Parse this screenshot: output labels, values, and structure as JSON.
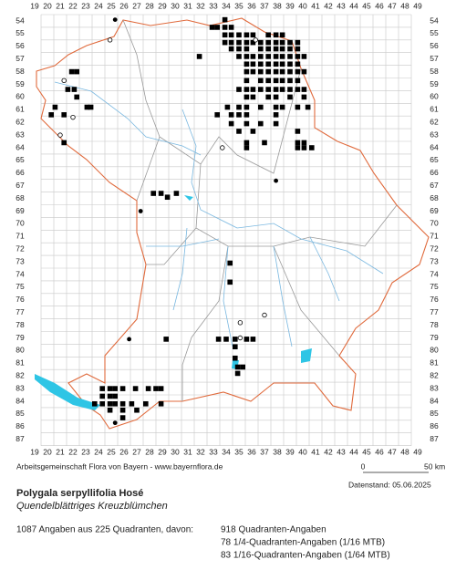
{
  "map": {
    "columns": [
      19,
      20,
      21,
      22,
      23,
      24,
      25,
      26,
      27,
      28,
      29,
      30,
      31,
      32,
      33,
      34,
      35,
      36,
      37,
      38,
      39,
      40,
      41,
      42,
      43,
      44,
      45,
      46,
      47,
      48,
      49
    ],
    "rows": [
      54,
      55,
      56,
      57,
      58,
      59,
      60,
      61,
      62,
      63,
      64,
      65,
      66,
      67,
      68,
      69,
      70,
      71,
      72,
      73,
      74,
      75,
      76,
      77,
      78,
      79,
      80,
      81,
      82,
      83,
      84,
      85,
      86,
      87
    ],
    "records": [
      {
        "row": 53.9,
        "cols": [
          33.9
        ],
        "symbol": "square"
      },
      {
        "row": 54.5,
        "cols": [
          32.9,
          33.3,
          33.9,
          34.4
        ],
        "symbol": "square"
      },
      {
        "row": 55.1,
        "cols": [
          33.9,
          34.4,
          35,
          35.6,
          36.1,
          37.3,
          37.9,
          38.4
        ],
        "symbol": "square"
      },
      {
        "row": 55.7,
        "cols": [
          33.9,
          34.4,
          35,
          35.6,
          36.1,
          36.7,
          37.3,
          37.9,
          38.4,
          39,
          39.6
        ],
        "symbol": "square"
      },
      {
        "row": 56.2,
        "cols": [
          34.4,
          35,
          35.6,
          36.7,
          37.3,
          37.9,
          38.4,
          39,
          39.6
        ],
        "symbol": "square"
      },
      {
        "row": 56.8,
        "cols": [
          31.9,
          35,
          35.6,
          36.1,
          36.7,
          37.3,
          37.9,
          38.4,
          39,
          39.6,
          40.1
        ],
        "symbol": "square"
      },
      {
        "row": 57.4,
        "cols": [
          35.6,
          36.1,
          36.7,
          37.3,
          37.9,
          38.4,
          39,
          39.6
        ],
        "symbol": "square"
      },
      {
        "row": 58.0,
        "cols": [
          21.9,
          22.3,
          35.6,
          36.1,
          36.7,
          37.3,
          37.9,
          38.4,
          39,
          39.6,
          40.1
        ],
        "symbol": "square"
      },
      {
        "row": 58.7,
        "cols": [
          35.6,
          36.7,
          37.3,
          37.9,
          38.4,
          39,
          39.6
        ],
        "symbol": "square"
      },
      {
        "row": 59.4,
        "cols": [
          21.6,
          22.1,
          35,
          35.6,
          36.1,
          36.7,
          37.3,
          37.9,
          38.4,
          39,
          39.6,
          40.1
        ],
        "symbol": "square"
      },
      {
        "row": 60.0,
        "cols": [
          22.3,
          35.6,
          36.1,
          37.3,
          37.9,
          39,
          40.1
        ],
        "symbol": "square"
      },
      {
        "row": 60.8,
        "cols": [
          20.6,
          23.1,
          23.4,
          34.1,
          35,
          35.6,
          36.7,
          37.9,
          38.4,
          39.6,
          40.4
        ],
        "symbol": "square"
      },
      {
        "row": 61.4,
        "cols": [
          20.3,
          21.3,
          33.3,
          34.4,
          35,
          35.6,
          37.9
        ],
        "symbol": "square"
      },
      {
        "row": 62.1,
        "cols": [
          34.4,
          35.6,
          36.7,
          37.9
        ],
        "symbol": "square"
      },
      {
        "row": 62.7,
        "cols": [
          35,
          36.1,
          39.6
        ],
        "symbol": "square"
      },
      {
        "row": 63.6,
        "cols": [
          21.3,
          35.6,
          37,
          39.6,
          40.1
        ],
        "symbol": "square"
      },
      {
        "row": 64.0,
        "cols": [
          35.6,
          39.6,
          40.1,
          40.7
        ],
        "symbol": "square"
      },
      {
        "row": 67.6,
        "cols": [
          28.3,
          28.9,
          30.1
        ],
        "symbol": "square"
      },
      {
        "row": 67.9,
        "cols": [
          29.4
        ],
        "symbol": "square"
      },
      {
        "row": 73.1,
        "cols": [
          34.3
        ],
        "symbol": "square"
      },
      {
        "row": 74.6,
        "cols": [
          34.3
        ],
        "symbol": "square"
      },
      {
        "row": 79.1,
        "cols": [
          29.3,
          33.4,
          34,
          34.7,
          35.6,
          36.1
        ],
        "symbol": "square"
      },
      {
        "row": 79.7,
        "cols": [
          34.7
        ],
        "symbol": "square"
      },
      {
        "row": 80.6,
        "cols": [
          34.7
        ],
        "symbol": "square"
      },
      {
        "row": 81.3,
        "cols": [
          34.9,
          35.3
        ],
        "symbol": "square"
      },
      {
        "row": 81.8,
        "cols": [
          34.9
        ],
        "symbol": "square"
      },
      {
        "row": 83.0,
        "cols": [
          24.3,
          24.9,
          25.3,
          25.9,
          26.9,
          27.9,
          28.5,
          28.9
        ],
        "symbol": "square"
      },
      {
        "row": 83.6,
        "cols": [
          24.3,
          24.9,
          25.3
        ],
        "symbol": "square"
      },
      {
        "row": 84.2,
        "cols": [
          23.7,
          24.3,
          24.9,
          25.3,
          25.9,
          26.6,
          27.7,
          28.9
        ],
        "symbol": "square"
      },
      {
        "row": 84.7,
        "cols": [
          24.9,
          25.9,
          27
        ],
        "symbol": "square"
      },
      {
        "row": 85.3,
        "cols": [
          25.9
        ],
        "symbol": "square"
      },
      {
        "row": 53.9,
        "cols": [
          25.3
        ],
        "symbol": "dot"
      },
      {
        "row": 66.6,
        "cols": [
          37.9
        ],
        "symbol": "dot"
      },
      {
        "row": 69.0,
        "cols": [
          27.3
        ],
        "symbol": "dot"
      },
      {
        "row": 79.1,
        "cols": [
          26.4
        ],
        "symbol": "dot"
      },
      {
        "row": 85.7,
        "cols": [
          25.3
        ],
        "symbol": "dot"
      },
      {
        "row": 55.5,
        "cols": [
          24.9,
          36.3
        ],
        "symbol": "circle"
      },
      {
        "row": 58.7,
        "cols": [
          21.3
        ],
        "symbol": "circle"
      },
      {
        "row": 61.6,
        "cols": [
          22
        ],
        "symbol": "circle"
      },
      {
        "row": 63.0,
        "cols": [
          21
        ],
        "symbol": "circle"
      },
      {
        "row": 64.0,
        "cols": [
          33.7
        ],
        "symbol": "circle"
      },
      {
        "row": 77.2,
        "cols": [
          37
        ],
        "symbol": "circle"
      },
      {
        "row": 77.8,
        "cols": [
          35.1
        ],
        "symbol": "circle"
      },
      {
        "row": 79.0,
        "cols": [
          35.1
        ],
        "symbol": "circle"
      }
    ]
  },
  "footer": {
    "credit": "Arbeitsgemeinschaft Flora von Bayern - www.bayernflora.de",
    "scale_start": "0",
    "scale_end": "50 km",
    "date": "Datenstand: 05.06.2025",
    "species": "Polygala serpyllifolia Hosé",
    "common_name": "Quendelblättriges Kreuzblümchen",
    "summary": "1087 Angaben aus 225 Quadranten, davon:",
    "counts": [
      "918 Quadranten-Angaben",
      "78 1/4-Quadranten-Angaben (1/16 MTB)",
      "83 1/16-Quadranten-Angaben (1/64 MTB)"
    ]
  }
}
